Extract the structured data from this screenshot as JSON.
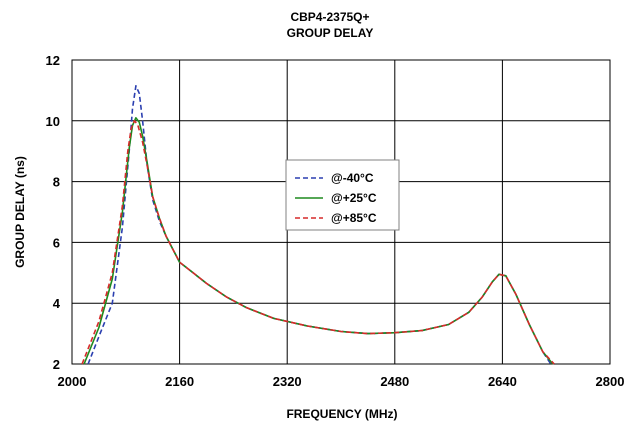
{
  "chart_data": {
    "type": "line",
    "title": "CBP4-2375Q+",
    "subtitle": "GROUP DELAY",
    "xlabel": "FREQUENCY (MHz)",
    "ylabel": "GROUP DELAY (ns)",
    "xlim": [
      2000,
      2800
    ],
    "ylim": [
      2,
      12
    ],
    "xticks": [
      "2000",
      "2160",
      "2320",
      "2480",
      "2640",
      "2800"
    ],
    "yticks": [
      "2",
      "4",
      "6",
      "8",
      "10",
      "12"
    ],
    "grid": true,
    "legend_position": "center",
    "series": [
      {
        "name": "@-40°C",
        "color": "#2b3fb0",
        "style": "dashed",
        "points": [
          [
            2024,
            2.0
          ],
          [
            2040,
            2.9
          ],
          [
            2060,
            4.0
          ],
          [
            2075,
            6.5
          ],
          [
            2085,
            9.0
          ],
          [
            2090,
            10.4
          ],
          [
            2095,
            11.15
          ],
          [
            2100,
            10.9
          ],
          [
            2105,
            10.0
          ],
          [
            2112,
            8.5
          ],
          [
            2120,
            7.4
          ],
          [
            2130,
            6.7
          ],
          [
            2140,
            6.2
          ],
          [
            2160,
            5.35
          ],
          [
            2180,
            5.0
          ],
          [
            2200,
            4.65
          ],
          [
            2230,
            4.2
          ],
          [
            2260,
            3.85
          ],
          [
            2300,
            3.5
          ],
          [
            2350,
            3.25
          ],
          [
            2400,
            3.07
          ],
          [
            2440,
            3.0
          ],
          [
            2480,
            3.03
          ],
          [
            2520,
            3.1
          ],
          [
            2560,
            3.3
          ],
          [
            2590,
            3.7
          ],
          [
            2610,
            4.2
          ],
          [
            2625,
            4.7
          ],
          [
            2635,
            4.95
          ],
          [
            2645,
            4.9
          ],
          [
            2660,
            4.3
          ],
          [
            2680,
            3.3
          ],
          [
            2700,
            2.4
          ],
          [
            2712,
            2.0
          ]
        ]
      },
      {
        "name": "@+25°C",
        "color": "#1e8a1e",
        "style": "solid",
        "points": [
          [
            2018,
            2.0
          ],
          [
            2040,
            3.2
          ],
          [
            2060,
            4.8
          ],
          [
            2075,
            7.0
          ],
          [
            2085,
            9.1
          ],
          [
            2090,
            9.85
          ],
          [
            2095,
            10.1
          ],
          [
            2100,
            9.95
          ],
          [
            2105,
            9.5
          ],
          [
            2112,
            8.6
          ],
          [
            2120,
            7.5
          ],
          [
            2130,
            6.8
          ],
          [
            2140,
            6.2
          ],
          [
            2160,
            5.35
          ],
          [
            2180,
            5.0
          ],
          [
            2200,
            4.65
          ],
          [
            2230,
            4.2
          ],
          [
            2260,
            3.85
          ],
          [
            2300,
            3.5
          ],
          [
            2350,
            3.25
          ],
          [
            2400,
            3.07
          ],
          [
            2440,
            3.0
          ],
          [
            2480,
            3.03
          ],
          [
            2520,
            3.1
          ],
          [
            2560,
            3.3
          ],
          [
            2590,
            3.7
          ],
          [
            2610,
            4.2
          ],
          [
            2625,
            4.7
          ],
          [
            2635,
            4.95
          ],
          [
            2645,
            4.9
          ],
          [
            2660,
            4.3
          ],
          [
            2680,
            3.3
          ],
          [
            2700,
            2.4
          ],
          [
            2715,
            2.0
          ]
        ]
      },
      {
        "name": "@+85°C",
        "color": "#d62a2a",
        "style": "dashed",
        "points": [
          [
            2015,
            2.0
          ],
          [
            2040,
            3.4
          ],
          [
            2060,
            5.0
          ],
          [
            2075,
            7.2
          ],
          [
            2083,
            9.0
          ],
          [
            2088,
            9.75
          ],
          [
            2093,
            10.0
          ],
          [
            2098,
            9.85
          ],
          [
            2105,
            9.3
          ],
          [
            2112,
            8.5
          ],
          [
            2120,
            7.5
          ],
          [
            2130,
            6.8
          ],
          [
            2140,
            6.2
          ],
          [
            2160,
            5.35
          ],
          [
            2180,
            5.0
          ],
          [
            2200,
            4.65
          ],
          [
            2230,
            4.2
          ],
          [
            2260,
            3.85
          ],
          [
            2300,
            3.5
          ],
          [
            2350,
            3.25
          ],
          [
            2400,
            3.07
          ],
          [
            2440,
            3.0
          ],
          [
            2480,
            3.03
          ],
          [
            2520,
            3.1
          ],
          [
            2560,
            3.3
          ],
          [
            2590,
            3.7
          ],
          [
            2610,
            4.2
          ],
          [
            2625,
            4.7
          ],
          [
            2635,
            4.95
          ],
          [
            2645,
            4.9
          ],
          [
            2660,
            4.3
          ],
          [
            2680,
            3.3
          ],
          [
            2700,
            2.4
          ],
          [
            2717,
            2.0
          ]
        ]
      }
    ]
  }
}
